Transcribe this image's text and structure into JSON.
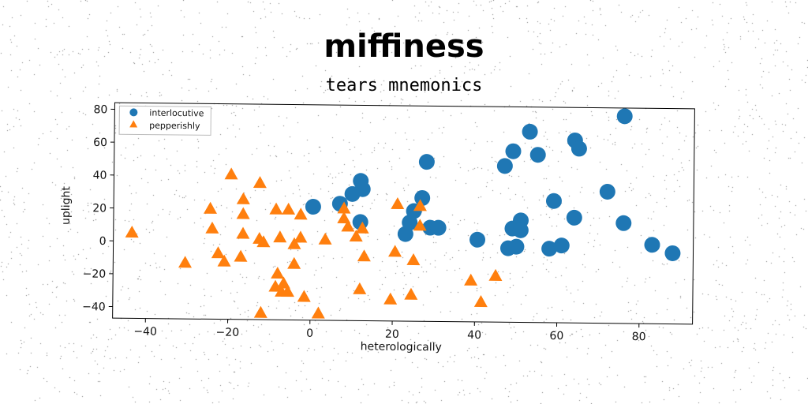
{
  "title": "miffiness",
  "subtitle": "tears mnemonics",
  "chart_data": {
    "type": "scatter",
    "xlabel": "heterologically",
    "ylabel": "uplight",
    "xlim": [
      -48,
      93
    ],
    "ylim": [
      -47,
      84
    ],
    "xticks": [
      -40,
      -20,
      0,
      20,
      40,
      60,
      80
    ],
    "yticks": [
      -40,
      -20,
      0,
      20,
      40,
      60,
      80
    ],
    "legend_position": "top-left",
    "series": [
      {
        "name": "interlocutive",
        "marker": "circle",
        "color": "#1f77b4",
        "points": [
          [
            0.5,
            22
          ],
          [
            7,
            24
          ],
          [
            10,
            30
          ],
          [
            12,
            38
          ],
          [
            12.5,
            33
          ],
          [
            12,
            13
          ],
          [
            23,
            6
          ],
          [
            24,
            13
          ],
          [
            25,
            20
          ],
          [
            27,
            28
          ],
          [
            28,
            50
          ],
          [
            29,
            10
          ],
          [
            31,
            10
          ],
          [
            40.5,
            3
          ],
          [
            47,
            48
          ],
          [
            48,
            -2
          ],
          [
            49,
            57
          ],
          [
            49,
            10
          ],
          [
            50,
            -1
          ],
          [
            51,
            15
          ],
          [
            51,
            9
          ],
          [
            53,
            69
          ],
          [
            55,
            55
          ],
          [
            58,
            -2
          ],
          [
            59,
            27
          ],
          [
            61,
            0
          ],
          [
            64,
            64
          ],
          [
            64,
            17
          ],
          [
            65,
            59
          ],
          [
            72,
            33
          ],
          [
            76,
            79
          ],
          [
            76,
            14
          ],
          [
            83,
            1
          ],
          [
            88,
            -4
          ]
        ]
      },
      {
        "name": "pepperishly",
        "marker": "triangle",
        "color": "#ff7f0e",
        "points": [
          [
            -43.5,
            5
          ],
          [
            -30.5,
            -13
          ],
          [
            -24.5,
            20
          ],
          [
            -24,
            8
          ],
          [
            -22.5,
            -7
          ],
          [
            -21,
            -12
          ],
          [
            -19.5,
            41
          ],
          [
            -17,
            -9
          ],
          [
            -16.5,
            26
          ],
          [
            -16.5,
            17
          ],
          [
            -16.5,
            5
          ],
          [
            -12.5,
            36
          ],
          [
            -12.5,
            2
          ],
          [
            -12,
            -43
          ],
          [
            -11.5,
            0
          ],
          [
            -8.5,
            20
          ],
          [
            -8.5,
            -27
          ],
          [
            -8,
            -19
          ],
          [
            -7.5,
            3
          ],
          [
            -7,
            -30
          ],
          [
            -6.5,
            -25
          ],
          [
            -5.5,
            20
          ],
          [
            -5.5,
            -30
          ],
          [
            -4,
            -13
          ],
          [
            -4,
            -1
          ],
          [
            -2.5,
            17
          ],
          [
            -2.5,
            3
          ],
          [
            -1.5,
            -33
          ],
          [
            2,
            -43
          ],
          [
            3.5,
            2
          ],
          [
            8,
            21
          ],
          [
            8,
            15
          ],
          [
            9,
            10
          ],
          [
            11,
            4
          ],
          [
            12,
            -28
          ],
          [
            12.5,
            9
          ],
          [
            13,
            -8
          ],
          [
            19.5,
            -34
          ],
          [
            20.5,
            -5
          ],
          [
            21,
            24
          ],
          [
            24.5,
            -31
          ],
          [
            25,
            -10
          ],
          [
            26.5,
            23
          ],
          [
            26.5,
            11
          ],
          [
            39,
            -22
          ],
          [
            41.5,
            -35
          ],
          [
            45,
            -19
          ]
        ]
      }
    ]
  }
}
